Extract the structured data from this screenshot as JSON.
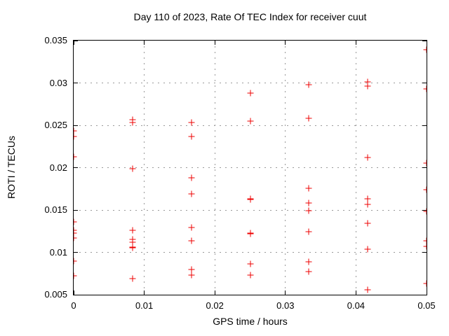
{
  "chart_data": {
    "type": "scatter",
    "title": "Day 110 of 2023, Rate Of TEC Index for receiver cuut",
    "xlabel": "GPS time / hours",
    "ylabel": "ROTI / TECUs",
    "xlim": [
      0,
      0.05
    ],
    "ylim": [
      0.005,
      0.035
    ],
    "xticks": [
      0,
      0.01,
      0.02,
      0.03,
      0.04,
      0.05
    ],
    "xtick_labels": [
      "0",
      "0.01",
      "0.02",
      "0.03",
      "0.04",
      "0.05"
    ],
    "yticks": [
      0.005,
      0.01,
      0.015,
      0.02,
      0.025,
      0.03,
      0.035
    ],
    "ytick_labels": [
      "0.005",
      "0.01",
      "0.015",
      "0.02",
      "0.025",
      "0.03",
      "0.035"
    ],
    "grid": true,
    "legend": "none",
    "marker": "plus",
    "marker_color": "#ee0000",
    "series": [
      {
        "name": "ROTI",
        "points": [
          [
            0,
            0.0243
          ],
          [
            0,
            0.0237
          ],
          [
            0,
            0.0213
          ],
          [
            0,
            0.0136
          ],
          [
            0,
            0.0126
          ],
          [
            0,
            0.0123
          ],
          [
            0,
            0.0117
          ],
          [
            0,
            0.009
          ],
          [
            0,
            0.0072
          ],
          [
            0.00833,
            0.0257
          ],
          [
            0.00833,
            0.0253
          ],
          [
            0.00833,
            0.0199
          ],
          [
            0.00833,
            0.0126
          ],
          [
            0.00833,
            0.0115
          ],
          [
            0.00833,
            0.0112
          ],
          [
            0.00833,
            0.0106
          ],
          [
            0.00833,
            0.0105
          ],
          [
            0.00833,
            0.0069
          ],
          [
            0.01667,
            0.0253
          ],
          [
            0.01667,
            0.0237
          ],
          [
            0.01667,
            0.0188
          ],
          [
            0.01667,
            0.0169
          ],
          [
            0.01667,
            0.0129
          ],
          [
            0.01667,
            0.0114
          ],
          [
            0.01667,
            0.008
          ],
          [
            0.01667,
            0.0073
          ],
          [
            0.025,
            0.0288
          ],
          [
            0.025,
            0.0255
          ],
          [
            0.025,
            0.0163
          ],
          [
            0.025,
            0.0162
          ],
          [
            0.025,
            0.0123
          ],
          [
            0.025,
            0.0122
          ],
          [
            0.025,
            0.0086
          ],
          [
            0.025,
            0.0073
          ],
          [
            0.03333,
            0.0298
          ],
          [
            0.03333,
            0.0258
          ],
          [
            0.03333,
            0.0176
          ],
          [
            0.03333,
            0.0158
          ],
          [
            0.03333,
            0.0149
          ],
          [
            0.03333,
            0.0124
          ],
          [
            0.03333,
            0.0089
          ],
          [
            0.03333,
            0.0077
          ],
          [
            0.04167,
            0.0301
          ],
          [
            0.04167,
            0.0296
          ],
          [
            0.04167,
            0.0212
          ],
          [
            0.04167,
            0.0163
          ],
          [
            0.04167,
            0.0157
          ],
          [
            0.04167,
            0.0134
          ],
          [
            0.04167,
            0.0104
          ],
          [
            0.04167,
            0.0056
          ],
          [
            0.05,
            0.0339
          ],
          [
            0.05,
            0.0293
          ],
          [
            0.05,
            0.0205
          ],
          [
            0.05,
            0.0174
          ],
          [
            0.05,
            0.0148
          ],
          [
            0.05,
            0.0114
          ],
          [
            0.05,
            0.0107
          ],
          [
            0.05,
            0.0063
          ]
        ]
      }
    ]
  }
}
